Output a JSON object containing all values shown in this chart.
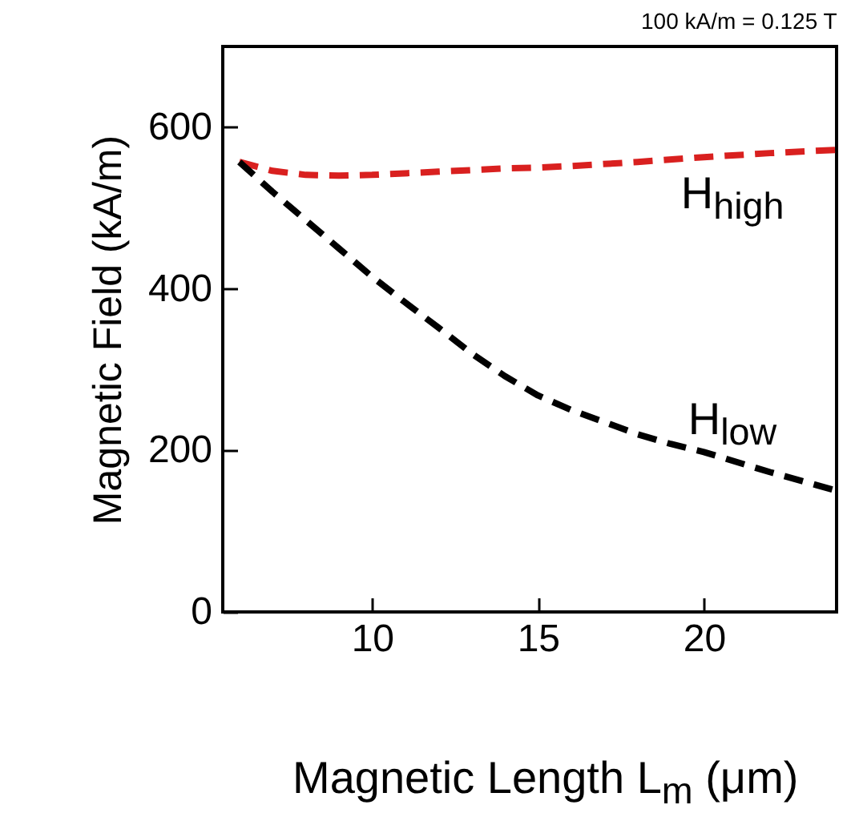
{
  "chart_data": {
    "type": "line",
    "xlabel": "Magnetic Length L$_{m}$ (μm)",
    "ylabel": "Magnetic Field (kA/m)",
    "xlim": [
      5.5,
      24
    ],
    "xticks": [
      10,
      15,
      20
    ],
    "ylim": [
      0,
      700
    ],
    "yticks": [
      0,
      200,
      400,
      600
    ],
    "grid": false,
    "line_style": "dashed",
    "marker": "none",
    "series": [
      {
        "name": "H$_{high}$",
        "color": "#d9201f",
        "x": [
          6,
          7,
          8,
          9,
          10,
          12,
          14,
          15,
          16,
          18,
          20,
          22,
          24
        ],
        "values": [
          557,
          546,
          541,
          540,
          541,
          545,
          549,
          550,
          552,
          557,
          563,
          568,
          572
        ]
      },
      {
        "name": "H$_{low}$",
        "color": "#000000",
        "x": [
          6,
          7,
          8,
          9,
          10,
          11,
          12,
          13,
          14,
          15,
          16,
          17,
          18,
          19,
          20,
          22,
          24
        ],
        "values": [
          557,
          520,
          485,
          450,
          415,
          383,
          352,
          320,
          292,
          268,
          250,
          235,
          220,
          208,
          198,
          173,
          150
        ]
      }
    ],
    "annotations": [
      "100 kA/m = 0.125 T"
    ]
  }
}
